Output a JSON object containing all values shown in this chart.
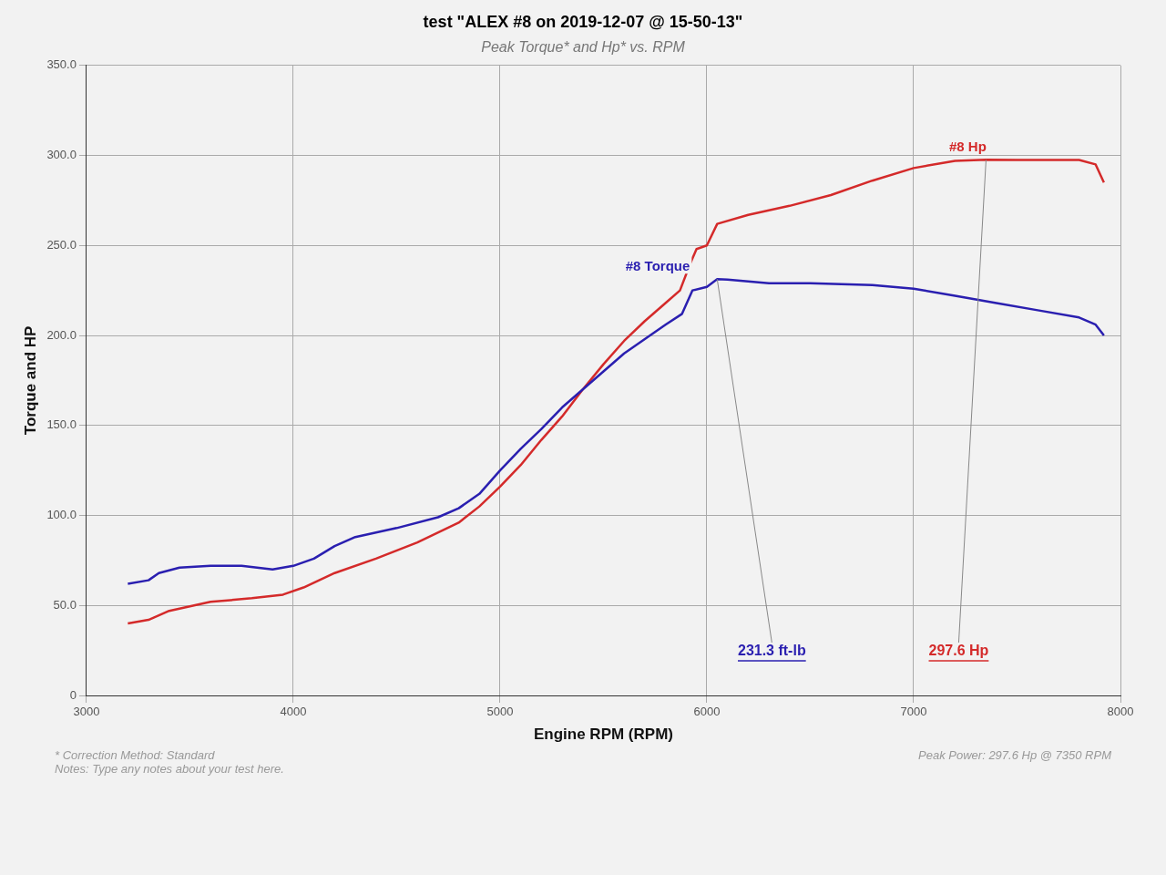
{
  "chart_data": {
    "type": "line",
    "title": "test \"ALEX #8 on 2019-12-07 @ 15-50-13\"",
    "subtitle": "Peak Torque* and Hp* vs. RPM",
    "xlabel": "Engine RPM (RPM)",
    "ylabel": "Torque and HP",
    "xlim": [
      3000,
      8000
    ],
    "xticks": [
      3000,
      4000,
      5000,
      6000,
      7000,
      8000
    ],
    "ylim": [
      0,
      350
    ],
    "yticks": [
      0,
      {
        "value": 50,
        "label": "50.0"
      },
      {
        "value": 100,
        "label": "100.0"
      },
      {
        "value": 150,
        "label": "150.0"
      },
      {
        "value": 200,
        "label": "200.0"
      },
      {
        "value": 250,
        "label": "250.0"
      },
      {
        "value": 300,
        "label": "300.0"
      },
      {
        "value": 350,
        "label": "350.0"
      }
    ],
    "grid": true,
    "legend": false,
    "marker": "none",
    "line_style": "solid",
    "series": [
      {
        "name": "#8 Torque",
        "color": "#2a1fb0",
        "x": [
          3200,
          3300,
          3350,
          3450,
          3600,
          3750,
          3900,
          4000,
          4100,
          4200,
          4300,
          4500,
          4700,
          4800,
          4900,
          5000,
          5100,
          5200,
          5300,
          5400,
          5500,
          5600,
          5700,
          5800,
          5880,
          5930,
          6000,
          6050,
          6100,
          6300,
          6500,
          6800,
          7000,
          7200,
          7400,
          7600,
          7800,
          7880,
          7920
        ],
        "values": [
          62,
          64,
          68,
          71,
          72,
          72,
          70,
          72,
          76,
          83,
          88,
          93,
          99,
          104,
          112,
          125,
          137,
          148,
          160,
          170,
          180,
          190,
          198,
          206,
          212,
          225,
          227,
          231.3,
          231,
          229,
          229,
          228,
          226,
          222,
          218,
          214,
          210,
          206,
          200
        ]
      },
      {
        "name": "#8 Hp",
        "color": "#d42a2a",
        "x": [
          3200,
          3300,
          3400,
          3600,
          3800,
          3950,
          4050,
          4200,
          4400,
          4600,
          4800,
          4900,
          5000,
          5100,
          5200,
          5300,
          5400,
          5500,
          5600,
          5700,
          5800,
          5870,
          5920,
          5950,
          6000,
          6050,
          6200,
          6400,
          6600,
          6800,
          7000,
          7200,
          7350,
          7500,
          7800,
          7880,
          7920
        ],
        "values": [
          40,
          42,
          47,
          52,
          54,
          56,
          60,
          68,
          76,
          85,
          96,
          105,
          116,
          128,
          142,
          155,
          170,
          184,
          197,
          208,
          218,
          225,
          240,
          248,
          250,
          262,
          267,
          272,
          278,
          286,
          293,
          297,
          297.6,
          297.5,
          297.5,
          295,
          285
        ]
      }
    ],
    "annotations": [
      {
        "text": "231.3 ft-lb",
        "x": 6050,
        "y": 231.3
      },
      {
        "text": "297.6 Hp",
        "x": 7350,
        "y": 297.6
      },
      "Peak Power: 297.6 Hp @ 7350 RPM",
      "* Correction Method: Standard",
      "Notes: Type any notes about your test here."
    ]
  }
}
